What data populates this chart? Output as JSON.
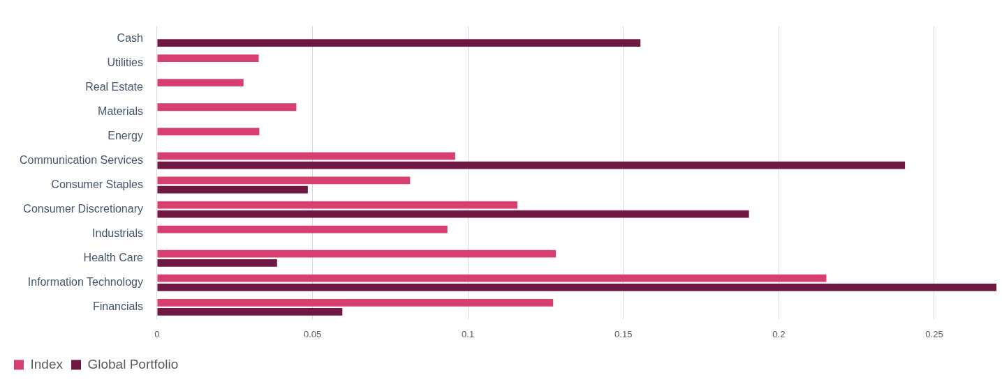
{
  "chart_data": {
    "type": "bar",
    "orientation": "horizontal",
    "categories": [
      "Cash",
      "Utilities",
      "Real Estate",
      "Materials",
      "Energy",
      "Communication Services",
      "Consumer Staples",
      "Consumer Discretionary",
      "Industrials",
      "Health Care",
      "Information Technology",
      "Financials"
    ],
    "series": [
      {
        "name": "Index",
        "color": "#d63f6f",
        "values": [
          null,
          0.0327,
          0.0278,
          0.0448,
          0.0329,
          0.0959,
          0.0814,
          0.1159,
          0.0934,
          0.1283,
          0.2153,
          0.1274
        ]
      },
      {
        "name": "Global Portfolio",
        "color": "#6f1843",
        "values": [
          0.1555,
          null,
          null,
          null,
          null,
          0.2406,
          0.0485,
          0.1904,
          null,
          0.0386,
          0.27,
          0.0596
        ]
      }
    ],
    "xlim": [
      0,
      0.27
    ],
    "xticks": [
      0,
      0.05,
      0.1,
      0.15,
      0.2,
      0.25
    ],
    "grid": "x",
    "legend": "bottom left"
  }
}
